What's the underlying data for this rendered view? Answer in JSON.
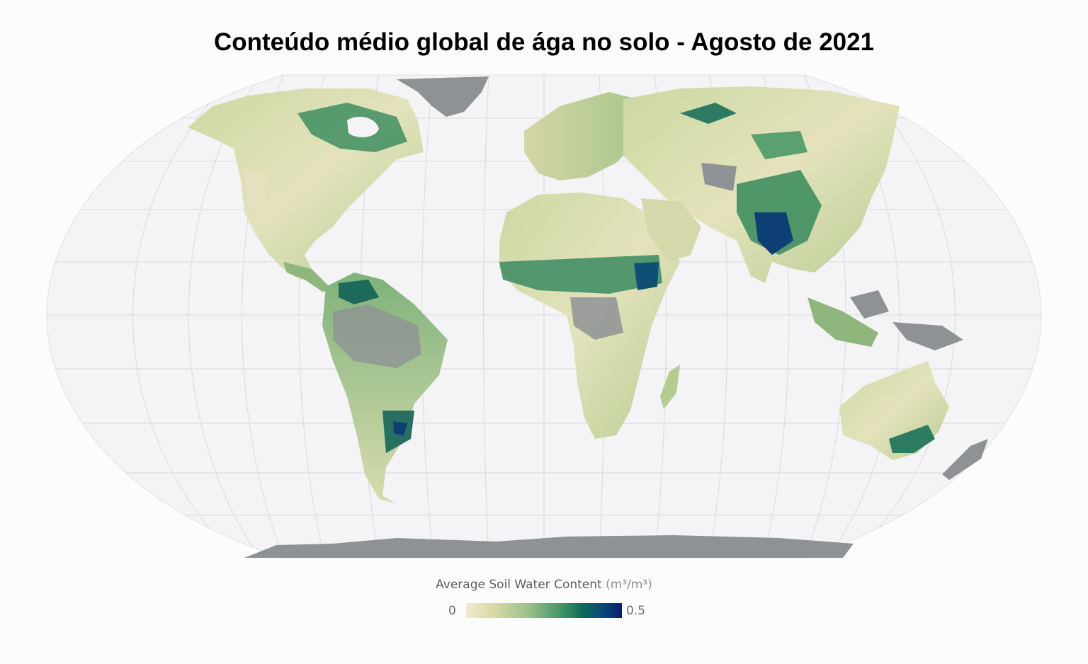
{
  "title": "Conteúdo médio global de ága no solo - Agosto de 2021",
  "legend": {
    "label": "Average Soil Water Content",
    "unit": "(m³/m³)",
    "min": "0",
    "max": "0.5",
    "colors": [
      "#f1ead0",
      "#9cc08a",
      "#0c6a58",
      "#0a1f6e"
    ]
  },
  "map": {
    "projection": "equal-earth",
    "ocean_color": "#f4f4f6",
    "no_data_color": "#8e9294",
    "graticule_color": "#d8d9dc"
  }
}
